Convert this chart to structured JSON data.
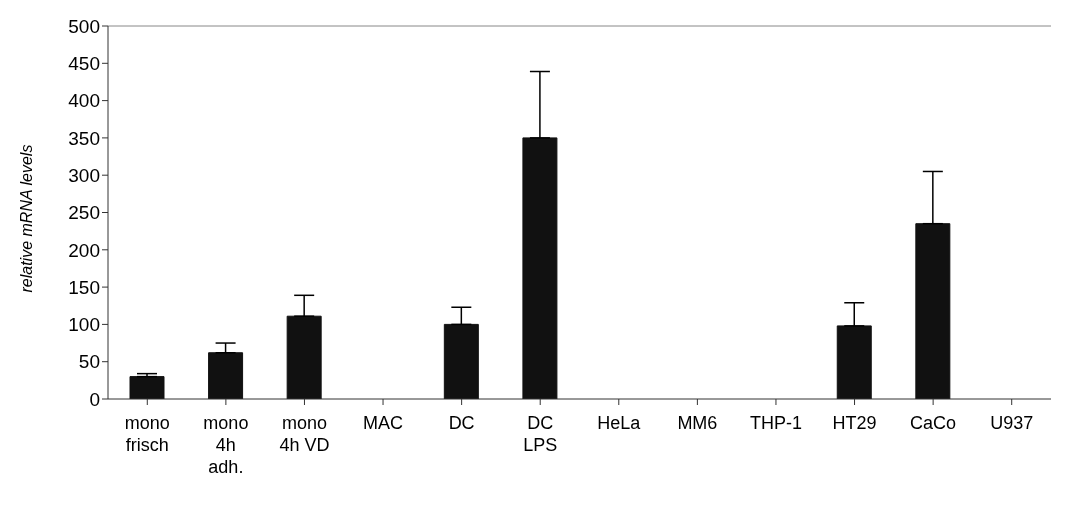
{
  "chart_data": {
    "type": "bar",
    "ylabel": "relative mRNA levels",
    "categories": [
      "mono\nfrisch",
      "mono\n4h\nadh.",
      "mono\n4h VD",
      "MAC",
      "DC",
      "DC\nLPS",
      "HeLa",
      "MM6",
      "THP-1",
      "HT29",
      "CaCo",
      "U937"
    ],
    "values": [
      30,
      62,
      111,
      0,
      100,
      350,
      0,
      0,
      0,
      98,
      235,
      0
    ],
    "errors": [
      [
        30,
        34
      ],
      [
        62,
        75
      ],
      [
        111,
        139
      ],
      null,
      [
        100,
        123
      ],
      [
        350,
        439
      ],
      null,
      null,
      null,
      [
        98,
        129
      ],
      [
        235,
        305
      ],
      null
    ],
    "color": "#111111",
    "ylim": [
      0,
      500
    ],
    "yticks": [
      0,
      50,
      100,
      150,
      200,
      250,
      300,
      350,
      400,
      450,
      500
    ]
  }
}
